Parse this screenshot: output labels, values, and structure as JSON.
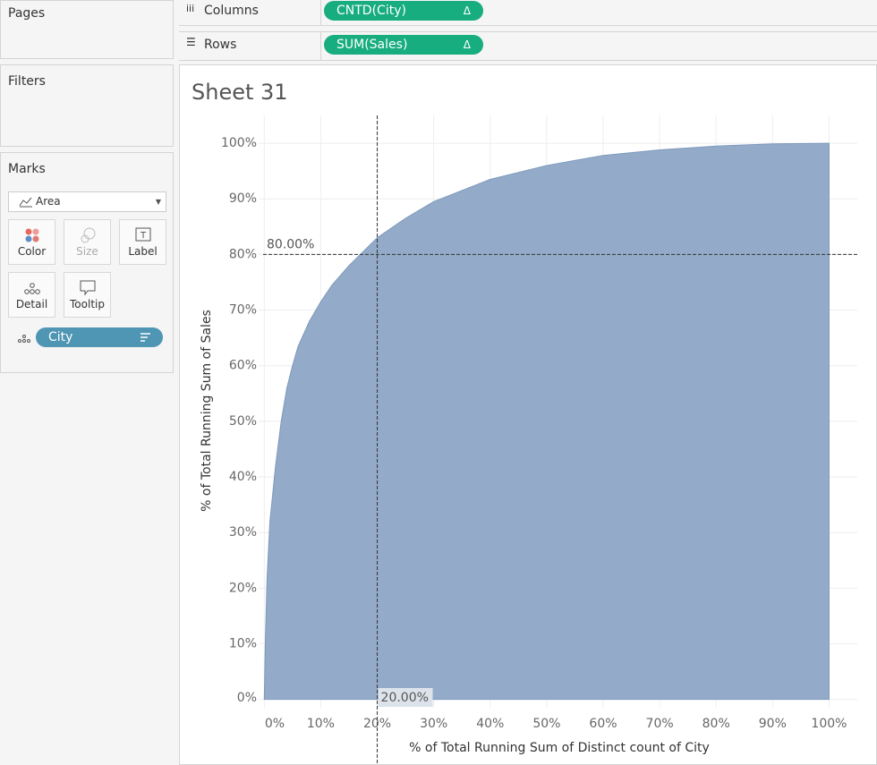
{
  "sidebar": {
    "pages": {
      "title": "Pages"
    },
    "filters": {
      "title": "Filters"
    },
    "marks": {
      "title": "Marks",
      "mark_type": "Area",
      "buttons": [
        "Color",
        "Size",
        "Label",
        "Detail",
        "Tooltip"
      ],
      "pill": "City"
    }
  },
  "shelves": {
    "columns": {
      "label": "Columns",
      "pill": "CNTD(City)",
      "pill_icon": "Δ"
    },
    "rows": {
      "label": "Rows",
      "pill": "SUM(Sales)",
      "pill_icon": "Δ"
    }
  },
  "chart_data": {
    "type": "area",
    "title": "Sheet 31",
    "x_label": "% of Total Running Sum of Distinct count of City",
    "y_label": "% of Total Running Sum of Sales",
    "x": [
      0,
      0.2,
      0.5,
      1,
      2,
      3,
      4,
      5,
      6,
      8,
      10,
      12,
      15,
      20,
      25,
      30,
      40,
      50,
      60,
      70,
      80,
      90,
      100
    ],
    "values": [
      0,
      11,
      22,
      32,
      42,
      50,
      56,
      60,
      63.5,
      68,
      71.5,
      74.5,
      78,
      83,
      86.5,
      89.5,
      93.5,
      96,
      97.8,
      98.8,
      99.5,
      99.9,
      100
    ],
    "color": "#93abc9",
    "line_color": "#7d99bd",
    "xlim": [
      -1,
      105
    ],
    "ylim": [
      -1.5,
      105
    ],
    "xticks": [
      {
        "value": 0,
        "label": "0%"
      },
      {
        "value": 10,
        "label": "10%"
      },
      {
        "value": 20,
        "label": "20%"
      },
      {
        "value": 30,
        "label": "30%"
      },
      {
        "value": 40,
        "label": "40%"
      },
      {
        "value": 50,
        "label": "50%"
      },
      {
        "value": 60,
        "label": "60%"
      },
      {
        "value": 70,
        "label": "70%"
      },
      {
        "value": 80,
        "label": "80%"
      },
      {
        "value": 90,
        "label": "90%"
      },
      {
        "value": 100,
        "label": "100%"
      }
    ],
    "yticks": [
      {
        "value": 0,
        "label": "0%"
      },
      {
        "value": 10,
        "label": "10%"
      },
      {
        "value": 20,
        "label": "20%"
      },
      {
        "value": 30,
        "label": "30%"
      },
      {
        "value": 40,
        "label": "40%"
      },
      {
        "value": 50,
        "label": "50%"
      },
      {
        "value": 60,
        "label": "60%"
      },
      {
        "value": 70,
        "label": "70%"
      },
      {
        "value": 80,
        "label": "80%"
      },
      {
        "value": 90,
        "label": "90%"
      },
      {
        "value": 100,
        "label": "100%"
      }
    ],
    "grid": true,
    "reference_lines": [
      {
        "axis": "x",
        "value": 20,
        "label": "20.00%"
      },
      {
        "axis": "y",
        "value": 80,
        "label": "80.00%"
      }
    ]
  }
}
